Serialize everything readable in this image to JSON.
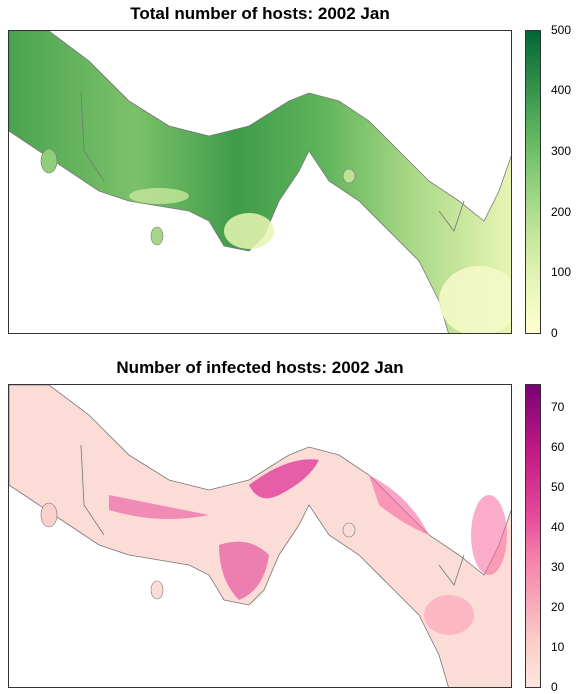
{
  "maps": [
    {
      "title": "Total number of hosts: 2002 Jan",
      "legend_ticks": [
        "0",
        "100",
        "200",
        "300",
        "400",
        "500"
      ],
      "colors": [
        "#ffffcc",
        "#e6f5b8",
        "#c2e699",
        "#8fcf7a",
        "#5bb35d",
        "#2e8b46",
        "#006837"
      ],
      "land_color": "#7fc27a",
      "sea_color": "#ffffff"
    },
    {
      "title": "Number of infected hosts: 2002 Jan",
      "legend_ticks": [
        "0",
        "10",
        "20",
        "30",
        "40",
        "50",
        "60",
        "70"
      ],
      "colors": [
        "#fde6e0",
        "#fccfc9",
        "#f9a9b8",
        "#f57faa",
        "#e6489b",
        "#c21a85",
        "#7a0177"
      ],
      "land_color": "#fbd7d2",
      "sea_color": "#ffffff"
    }
  ]
}
